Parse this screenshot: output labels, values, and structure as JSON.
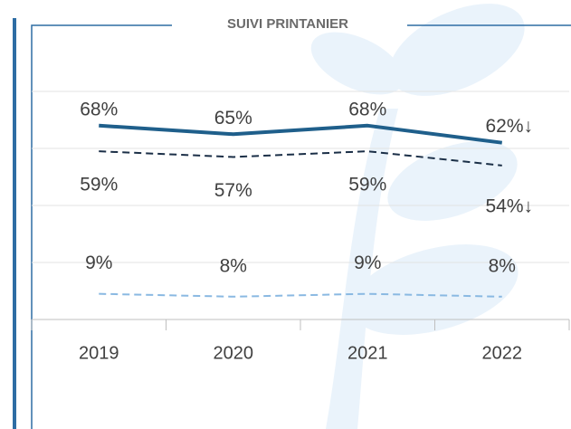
{
  "chart_data": {
    "type": "line",
    "title": "SUIVI PRINTANIER",
    "categories": [
      "2019",
      "2020",
      "2021",
      "2022"
    ],
    "ylim": [
      0,
      80
    ],
    "yticks": [
      0,
      20,
      40,
      60,
      80
    ],
    "grid": true,
    "series": [
      {
        "color": "#1f5f8b",
        "line_style": "solid",
        "values": [
          68,
          65,
          68,
          62
        ],
        "value_labels": [
          "68%",
          "65%",
          "68%",
          "62%↓"
        ]
      },
      {
        "color": "#1b2f47",
        "line_style": "dashed",
        "values": [
          59,
          57,
          59,
          54
        ],
        "value_labels": [
          "59%",
          "57%",
          "59%",
          "54%↓"
        ]
      },
      {
        "color": "#8ab9e2",
        "line_style": "dashed",
        "values": [
          9,
          8,
          9,
          8
        ],
        "value_labels": [
          "9%",
          "8%",
          "9%",
          "8%"
        ]
      }
    ]
  }
}
